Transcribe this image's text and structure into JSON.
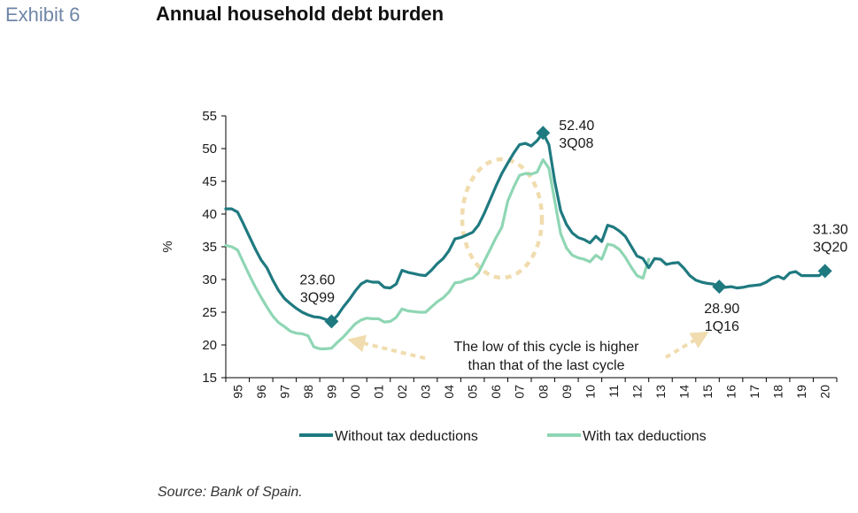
{
  "exhibit_label": "Exhibit 6",
  "title": "Annual household debt burden",
  "source": "Source: Bank of Spain.",
  "colors": {
    "without": "#1f7a80",
    "with": "#8fd6b4",
    "highlight": "#f0dcae",
    "axis": "#000000"
  },
  "chart_data": {
    "type": "line",
    "ylabel": "%",
    "xlabel": "",
    "ylim": [
      15,
      55
    ],
    "y_ticks": [
      15,
      20,
      25,
      30,
      35,
      40,
      45,
      50,
      55
    ],
    "xlim": [
      1995,
      2021.0
    ],
    "x_tick_labels": [
      "95",
      "96",
      "97",
      "98",
      "99",
      "00",
      "01",
      "02",
      "03",
      "04",
      "05",
      "06",
      "07",
      "08",
      "09",
      "10",
      "11",
      "12",
      "13",
      "14",
      "15",
      "16",
      "17",
      "18",
      "19",
      "20"
    ],
    "legend_position": "bottom",
    "grid": false,
    "series": [
      {
        "name": "Without tax deductions",
        "color": "#1f7a80",
        "points": [
          [
            1995.0,
            40.8
          ],
          [
            1995.25,
            40.8
          ],
          [
            1995.5,
            40.3
          ],
          [
            1995.75,
            38.5
          ],
          [
            1996.0,
            36.6
          ],
          [
            1996.25,
            34.7
          ],
          [
            1996.5,
            33.0
          ],
          [
            1996.75,
            31.8
          ],
          [
            1997.0,
            29.9
          ],
          [
            1997.25,
            28.3
          ],
          [
            1997.5,
            27.1
          ],
          [
            1997.75,
            26.3
          ],
          [
            1998.0,
            25.6
          ],
          [
            1998.25,
            25.0
          ],
          [
            1998.5,
            24.6
          ],
          [
            1998.75,
            24.3
          ],
          [
            1999.0,
            24.2
          ],
          [
            1999.25,
            23.9
          ],
          [
            1999.5,
            23.6
          ],
          [
            1999.75,
            24.5
          ],
          [
            2000.0,
            25.8
          ],
          [
            2000.25,
            26.9
          ],
          [
            2000.5,
            28.2
          ],
          [
            2000.75,
            29.3
          ],
          [
            2001.0,
            29.8
          ],
          [
            2001.25,
            29.6
          ],
          [
            2001.5,
            29.6
          ],
          [
            2001.75,
            28.8
          ],
          [
            2002.0,
            28.7
          ],
          [
            2002.25,
            29.3
          ],
          [
            2002.5,
            31.4
          ],
          [
            2002.75,
            31.1
          ],
          [
            2003.0,
            30.9
          ],
          [
            2003.25,
            30.7
          ],
          [
            2003.5,
            30.6
          ],
          [
            2003.75,
            31.4
          ],
          [
            2004.0,
            32.4
          ],
          [
            2004.25,
            33.2
          ],
          [
            2004.5,
            34.4
          ],
          [
            2004.75,
            36.2
          ],
          [
            2005.0,
            36.4
          ],
          [
            2005.25,
            36.8
          ],
          [
            2005.5,
            37.2
          ],
          [
            2005.75,
            38.3
          ],
          [
            2006.0,
            40.1
          ],
          [
            2006.25,
            42.2
          ],
          [
            2006.5,
            44.3
          ],
          [
            2006.75,
            46.2
          ],
          [
            2007.0,
            47.8
          ],
          [
            2007.25,
            49.3
          ],
          [
            2007.5,
            50.6
          ],
          [
            2007.75,
            50.8
          ],
          [
            2008.0,
            50.4
          ],
          [
            2008.25,
            51.2
          ],
          [
            2008.5,
            52.4
          ],
          [
            2008.75,
            50.6
          ],
          [
            2009.0,
            45.0
          ],
          [
            2009.25,
            40.5
          ],
          [
            2009.5,
            38.4
          ],
          [
            2009.75,
            37.1
          ],
          [
            2010.0,
            36.4
          ],
          [
            2010.25,
            36.1
          ],
          [
            2010.5,
            35.6
          ],
          [
            2010.75,
            36.6
          ],
          [
            2011.0,
            35.8
          ],
          [
            2011.25,
            38.3
          ],
          [
            2011.5,
            38.0
          ],
          [
            2011.75,
            37.4
          ],
          [
            2012.0,
            36.6
          ],
          [
            2012.25,
            35.1
          ],
          [
            2012.5,
            33.6
          ],
          [
            2012.75,
            33.2
          ],
          [
            2013.0,
            31.8
          ],
          [
            2013.25,
            33.2
          ],
          [
            2013.5,
            33.1
          ],
          [
            2013.75,
            32.3
          ],
          [
            2014.0,
            32.5
          ],
          [
            2014.25,
            32.6
          ],
          [
            2014.5,
            31.7
          ],
          [
            2014.75,
            30.6
          ],
          [
            2015.0,
            29.9
          ],
          [
            2015.25,
            29.6
          ],
          [
            2015.5,
            29.4
          ],
          [
            2015.75,
            29.3
          ],
          [
            2016.0,
            28.9
          ],
          [
            2016.25,
            28.8
          ],
          [
            2016.5,
            28.9
          ],
          [
            2016.75,
            28.7
          ],
          [
            2017.0,
            28.8
          ],
          [
            2017.25,
            29.0
          ],
          [
            2017.5,
            29.1
          ],
          [
            2017.75,
            29.2
          ],
          [
            2018.0,
            29.6
          ],
          [
            2018.25,
            30.2
          ],
          [
            2018.5,
            30.5
          ],
          [
            2018.75,
            30.1
          ],
          [
            2019.0,
            31.0
          ],
          [
            2019.25,
            31.2
          ],
          [
            2019.5,
            30.6
          ],
          [
            2019.75,
            30.6
          ],
          [
            2020.0,
            30.6
          ],
          [
            2020.25,
            30.6
          ],
          [
            2020.5,
            31.3
          ]
        ]
      },
      {
        "name": "With tax deductions",
        "color": "#8fd6b4",
        "points": [
          [
            1995.0,
            35.2
          ],
          [
            1995.25,
            35.0
          ],
          [
            1995.5,
            34.5
          ],
          [
            1995.75,
            32.6
          ],
          [
            1996.0,
            30.7
          ],
          [
            1996.25,
            28.9
          ],
          [
            1996.5,
            27.3
          ],
          [
            1996.75,
            25.8
          ],
          [
            1997.0,
            24.4
          ],
          [
            1997.25,
            23.4
          ],
          [
            1997.5,
            22.8
          ],
          [
            1997.75,
            22.1
          ],
          [
            1998.0,
            21.8
          ],
          [
            1998.25,
            21.7
          ],
          [
            1998.5,
            21.4
          ],
          [
            1998.75,
            19.7
          ],
          [
            1999.0,
            19.4
          ],
          [
            1999.25,
            19.4
          ],
          [
            1999.5,
            19.5
          ],
          [
            1999.75,
            20.4
          ],
          [
            2000.0,
            21.2
          ],
          [
            2000.25,
            22.2
          ],
          [
            2000.5,
            23.2
          ],
          [
            2000.75,
            23.8
          ],
          [
            2001.0,
            24.1
          ],
          [
            2001.25,
            24.0
          ],
          [
            2001.5,
            24.0
          ],
          [
            2001.75,
            23.5
          ],
          [
            2002.0,
            23.6
          ],
          [
            2002.25,
            24.2
          ],
          [
            2002.5,
            25.5
          ],
          [
            2002.75,
            25.2
          ],
          [
            2003.0,
            25.1
          ],
          [
            2003.25,
            25.0
          ],
          [
            2003.5,
            25.0
          ],
          [
            2003.75,
            25.8
          ],
          [
            2004.0,
            26.6
          ],
          [
            2004.25,
            27.2
          ],
          [
            2004.5,
            28.1
          ],
          [
            2004.75,
            29.5
          ],
          [
            2005.0,
            29.6
          ],
          [
            2005.25,
            30.0
          ],
          [
            2005.5,
            30.2
          ],
          [
            2005.75,
            31.0
          ],
          [
            2006.0,
            32.8
          ],
          [
            2006.25,
            34.6
          ],
          [
            2006.5,
            36.4
          ],
          [
            2006.75,
            38.0
          ],
          [
            2007.0,
            42.0
          ],
          [
            2007.25,
            44.1
          ],
          [
            2007.5,
            45.9
          ],
          [
            2007.75,
            46.2
          ],
          [
            2008.0,
            46.1
          ],
          [
            2008.25,
            46.4
          ],
          [
            2008.5,
            48.3
          ],
          [
            2008.75,
            47.0
          ],
          [
            2009.0,
            42.0
          ],
          [
            2009.25,
            37.0
          ],
          [
            2009.5,
            34.8
          ],
          [
            2009.75,
            33.7
          ],
          [
            2010.0,
            33.3
          ],
          [
            2010.25,
            33.1
          ],
          [
            2010.5,
            32.7
          ],
          [
            2010.75,
            33.7
          ],
          [
            2011.0,
            33.1
          ],
          [
            2011.25,
            35.4
          ],
          [
            2011.5,
            35.2
          ],
          [
            2011.75,
            34.6
          ],
          [
            2012.0,
            33.4
          ],
          [
            2012.25,
            31.9
          ],
          [
            2012.5,
            30.6
          ],
          [
            2012.75,
            30.2
          ],
          [
            2013.0,
            33.1
          ]
        ]
      }
    ],
    "annotations": [
      {
        "id": "ann-3q99",
        "x": 1999.5,
        "y": 23.6,
        "value": "23.60",
        "label": "3Q99"
      },
      {
        "id": "ann-3q08",
        "x": 2008.5,
        "y": 52.4,
        "value": "52.40",
        "label": "3Q08"
      },
      {
        "id": "ann-1q16",
        "x": 2016.0,
        "y": 28.9,
        "value": "28.90",
        "label": "1Q16"
      },
      {
        "id": "ann-3q20",
        "x": 2020.5,
        "y": 31.3,
        "value": "31.30",
        "label": "3Q20"
      }
    ],
    "note_lines": [
      "The low of this cycle is higher",
      "than that of the last cycle"
    ]
  }
}
